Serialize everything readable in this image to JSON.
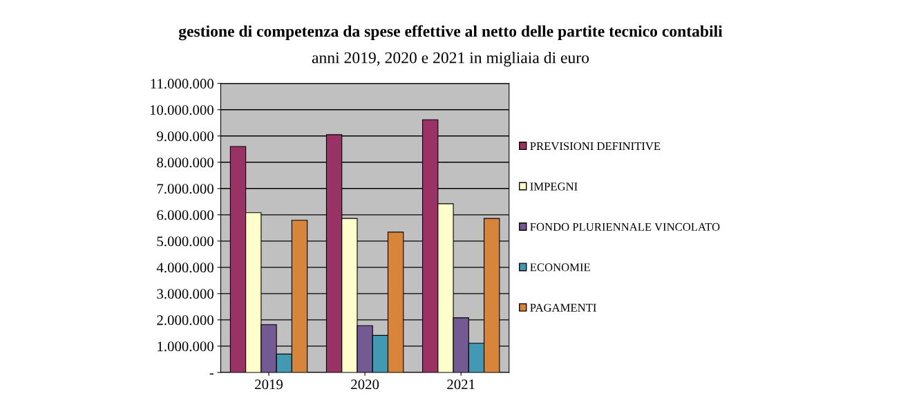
{
  "chart_data": {
    "type": "bar",
    "title": "gestione di competenza da spese effettive al netto delle partite tecnico contabili",
    "subtitle": "anni 2019, 2020 e 2021 in migliaia di euro",
    "categories": [
      "2019",
      "2020",
      "2021"
    ],
    "series": [
      {
        "name": "PREVISIONI DEFINITIVE",
        "color": "#993366",
        "values": [
          8600000,
          9050000,
          9620000
        ]
      },
      {
        "name": "IMPEGNI",
        "color": "#ffffcc",
        "values": [
          6080000,
          5860000,
          6420000
        ]
      },
      {
        "name": "FONDO PLURIENNALE VINCOLATO",
        "color": "#735a92",
        "values": [
          1820000,
          1780000,
          2080000
        ]
      },
      {
        "name": "ECONOMIE",
        "color": "#4399b2",
        "values": [
          700000,
          1410000,
          1110000
        ]
      },
      {
        "name": "PAGAMENTI",
        "color": "#d9843b",
        "values": [
          5790000,
          5340000,
          5860000
        ]
      }
    ],
    "ylim": [
      0,
      11000000
    ],
    "yticks": [
      {
        "value": 0,
        "label": "-"
      },
      {
        "value": 1000000,
        "label": "1.000.000"
      },
      {
        "value": 2000000,
        "label": "2.000.000"
      },
      {
        "value": 3000000,
        "label": "3.000.000"
      },
      {
        "value": 4000000,
        "label": "4.000.000"
      },
      {
        "value": 5000000,
        "label": "5.000.000"
      },
      {
        "value": 6000000,
        "label": "6.000.000"
      },
      {
        "value": 7000000,
        "label": "7.000.000"
      },
      {
        "value": 8000000,
        "label": "8.000.000"
      },
      {
        "value": 9000000,
        "label": "9.000.000"
      },
      {
        "value": 10000000,
        "label": "10.000.000"
      },
      {
        "value": 11000000,
        "label": "11.000.000"
      }
    ],
    "grid": "y",
    "legend": "right"
  }
}
